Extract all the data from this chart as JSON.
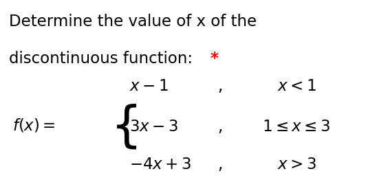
{
  "title_line1": "Determine the value of x of the",
  "title_line2": "discontinuous function: ",
  "title_asterisk": "*",
  "bg_color": "#ffffff",
  "text_color": "#000000",
  "asterisk_color": "#ff0000",
  "title_fontsize": 16.5,
  "math_fontsize": 16.5,
  "fig_width": 5.61,
  "fig_height": 2.62,
  "dpi": 100
}
